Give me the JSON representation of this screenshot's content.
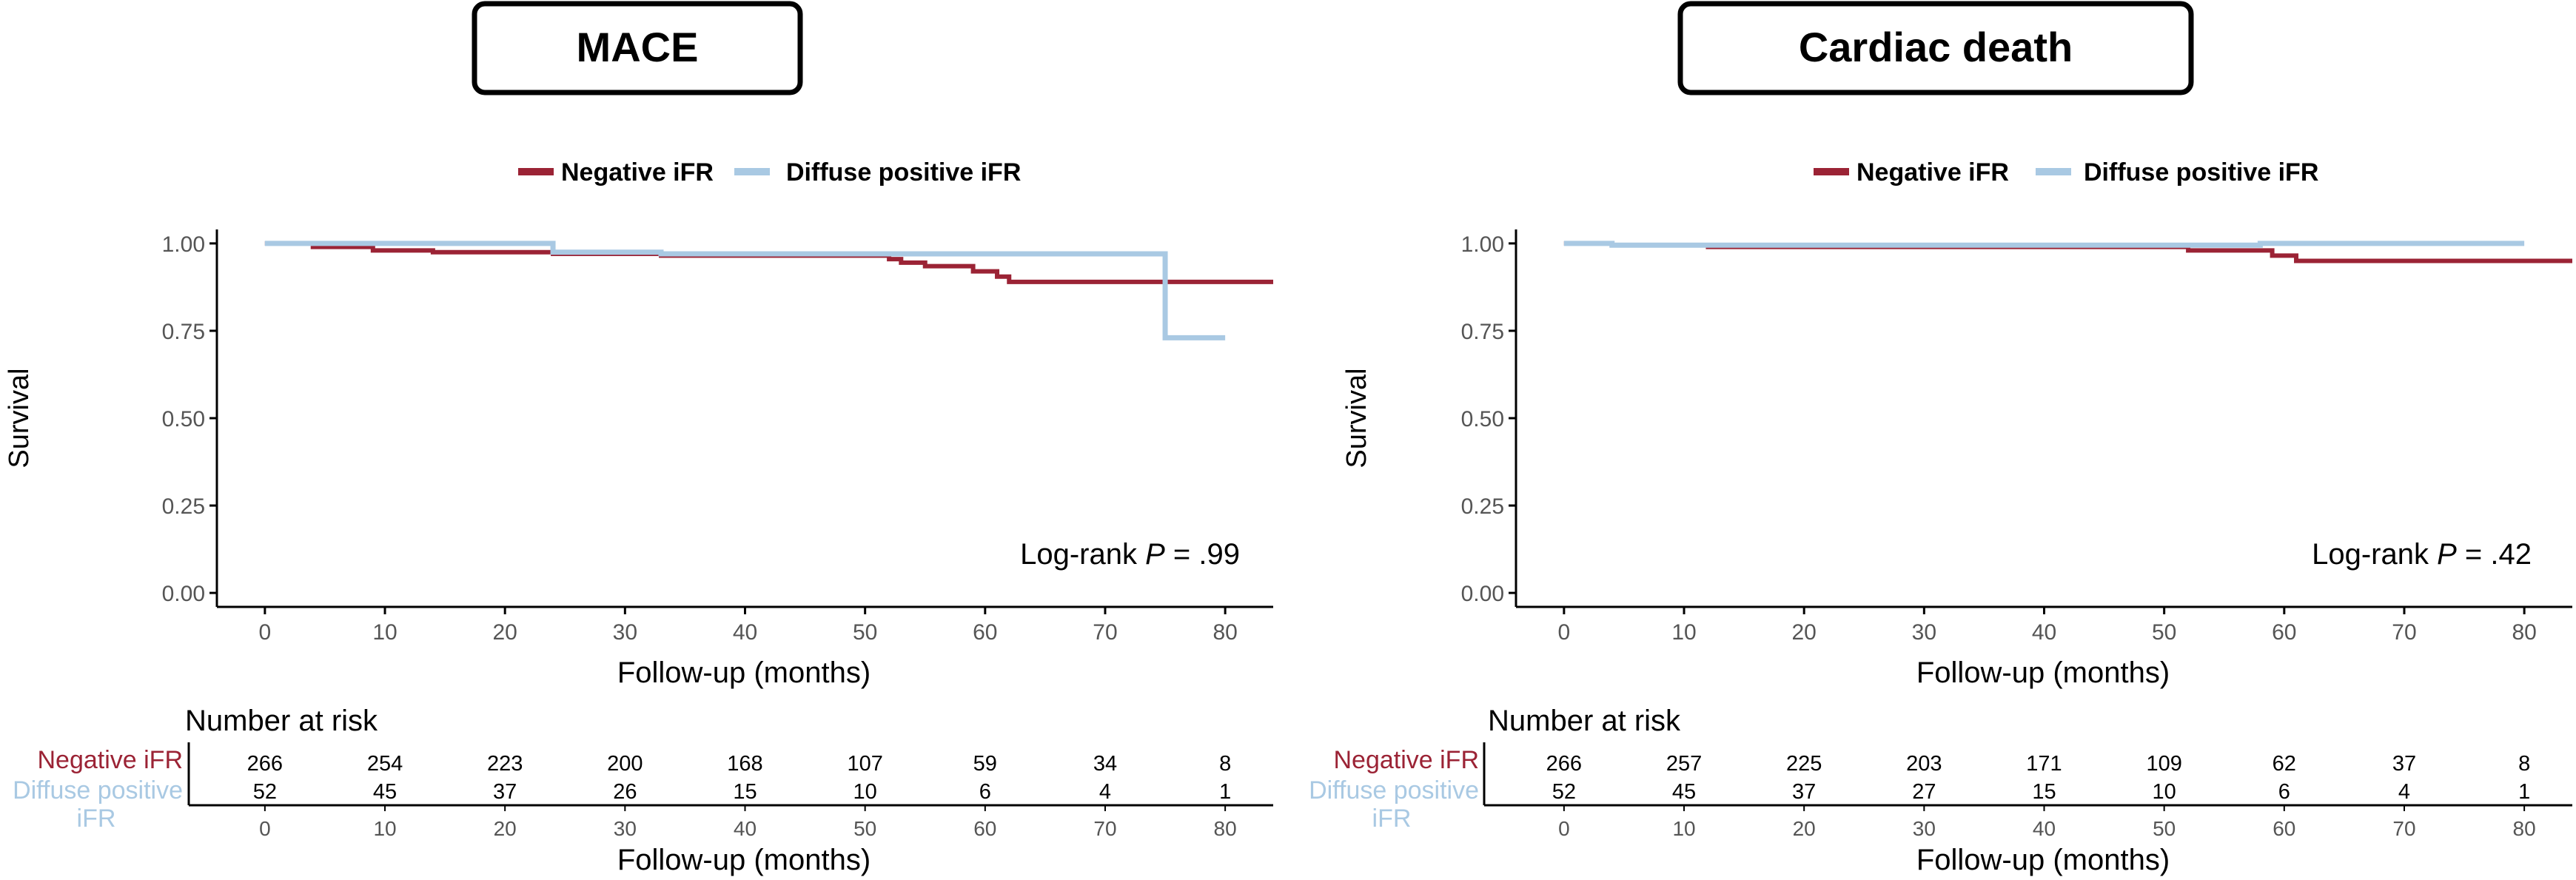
{
  "colors": {
    "negative": "#9b2335",
    "diffuse": "#a9c9e3",
    "axis": "#000000",
    "tick_text": "#555555"
  },
  "panels": [
    {
      "title": "MACE",
      "legend": [
        "Negative iFR",
        "Diffuse positive iFR"
      ],
      "ylabel": "Survival",
      "xlabel": "Follow-up (months)",
      "logrank_prefix": "Log-rank ",
      "logrank_p_symbol": "P",
      "logrank_value": " = .99",
      "risk": {
        "header": "Number at risk",
        "row1_label": "Negative iFR",
        "row2_label_line1": "Diffuse positive",
        "row2_label_line2": "iFR",
        "xlabel": "Follow-up (months)"
      }
    },
    {
      "title": "Cardiac death",
      "legend": [
        "Negative iFR",
        "Diffuse positive iFR"
      ],
      "ylabel": "Survival",
      "xlabel": "Follow-up (months)",
      "logrank_prefix": "Log-rank ",
      "logrank_p_symbol": "P",
      "logrank_value": " = .42",
      "risk": {
        "header": "Number at risk",
        "row1_label": "Negative iFR",
        "row2_label_line1": "Diffuse positive",
        "row2_label_line2": "iFR",
        "xlabel": "Follow-up (months)"
      }
    }
  ],
  "chart_data": [
    {
      "type": "line",
      "title": "MACE",
      "xlabel": "Follow-up (months)",
      "ylabel": "Survival",
      "xlim": [
        -4,
        84
      ],
      "ylim": [
        -0.04,
        1.04
      ],
      "x_ticks": [
        "0",
        "10",
        "20",
        "30",
        "40",
        "50",
        "60",
        "70",
        "80"
      ],
      "y_ticks": [
        "0.00",
        "0.25",
        "0.50",
        "0.75",
        "1.00"
      ],
      "legend_position": "top",
      "series": [
        {
          "name": "Negative iFR",
          "color": "#9b2335",
          "x": [
            0,
            4,
            9,
            14,
            24,
            33,
            52,
            53,
            55,
            59,
            61,
            62,
            84
          ],
          "y": [
            1.0,
            0.99,
            0.98,
            0.975,
            0.97,
            0.965,
            0.955,
            0.945,
            0.935,
            0.92,
            0.905,
            0.89,
            0.89
          ]
        },
        {
          "name": "Diffuse positive iFR",
          "color": "#a9c9e3",
          "x": [
            0,
            24,
            33,
            75,
            80
          ],
          "y": [
            1.0,
            0.975,
            0.97,
            0.73,
            0.73
          ]
        }
      ],
      "risk_table": {
        "x": [
          0,
          10,
          20,
          30,
          40,
          50,
          60,
          70,
          80
        ],
        "Negative iFR": [
          266,
          254,
          223,
          200,
          168,
          107,
          59,
          34,
          8
        ],
        "Diffuse positive iFR": [
          52,
          45,
          37,
          26,
          15,
          10,
          6,
          4,
          1
        ]
      }
    },
    {
      "type": "line",
      "title": "Cardiac death",
      "xlabel": "Follow-up (months)",
      "ylabel": "Survival",
      "xlim": [
        -4,
        84
      ],
      "ylim": [
        -0.04,
        1.04
      ],
      "x_ticks": [
        "0",
        "10",
        "20",
        "30",
        "40",
        "50",
        "60",
        "70",
        "80"
      ],
      "y_ticks": [
        "0.00",
        "0.25",
        "0.50",
        "0.75",
        "1.00"
      ],
      "legend_position": "top",
      "series": [
        {
          "name": "Negative iFR",
          "color": "#9b2335",
          "x": [
            0,
            4,
            12,
            52,
            59,
            61,
            84
          ],
          "y": [
            1.0,
            0.995,
            0.99,
            0.98,
            0.965,
            0.95,
            0.95
          ]
        },
        {
          "name": "Diffuse positive iFR",
          "color": "#a9c9e3",
          "x": [
            0,
            4,
            58,
            80
          ],
          "y": [
            1.0,
            0.995,
            1.0,
            1.0
          ]
        }
      ],
      "risk_table": {
        "x": [
          0,
          10,
          20,
          30,
          40,
          50,
          60,
          70,
          80
        ],
        "Negative iFR": [
          266,
          257,
          225,
          203,
          171,
          109,
          62,
          37,
          8
        ],
        "Diffuse positive iFR": [
          52,
          45,
          37,
          27,
          15,
          10,
          6,
          4,
          1
        ]
      }
    }
  ]
}
